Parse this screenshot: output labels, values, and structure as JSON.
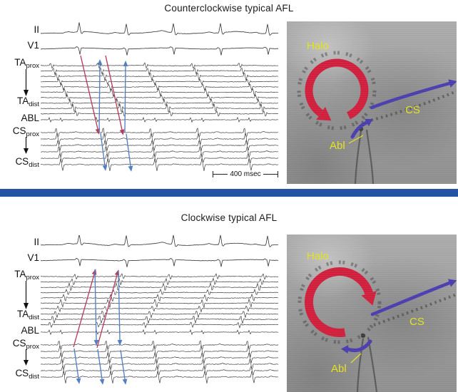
{
  "figure": {
    "panels": [
      {
        "title": "Counterclockwise typical AFL",
        "channel_labels": [
          {
            "main": "II",
            "sub": ""
          },
          {
            "main": "V1",
            "sub": ""
          },
          {
            "main": "TA",
            "sub": "prox"
          },
          {
            "main": "TA",
            "sub": "dist"
          },
          {
            "main": "ABL",
            "sub": ""
          },
          {
            "main": "CS",
            "sub": "prox"
          },
          {
            "main": "CS",
            "sub": "dist"
          }
        ],
        "scale_label": "400 msec",
        "fluoro": {
          "halo_label": "Halo",
          "cs_label": "CS",
          "abl_label": "Abl",
          "rotation": "counterclockwise"
        }
      },
      {
        "title": "Clockwise typical AFL",
        "channel_labels": [
          {
            "main": "II",
            "sub": ""
          },
          {
            "main": "V1",
            "sub": ""
          },
          {
            "main": "TA",
            "sub": "prox"
          },
          {
            "main": "TA",
            "sub": "dist"
          },
          {
            "main": "ABL",
            "sub": ""
          },
          {
            "main": "CS",
            "sub": "prox"
          },
          {
            "main": "CS",
            "sub": "dist"
          }
        ],
        "fluoro": {
          "halo_label": "Halo",
          "cs_label": "CS",
          "abl_label": "Abl",
          "rotation": "clockwise"
        }
      }
    ],
    "colors": {
      "reentry_arrow_red": "#cf1f3d",
      "catheter_arrow_blue": "#4a3dae",
      "fluoro_label_yellow": "#e3e320",
      "ecg_arrow_red": "#b63c5c",
      "ecg_arrow_blue": "#5580c0",
      "divider_blue": "#2355a4"
    }
  }
}
